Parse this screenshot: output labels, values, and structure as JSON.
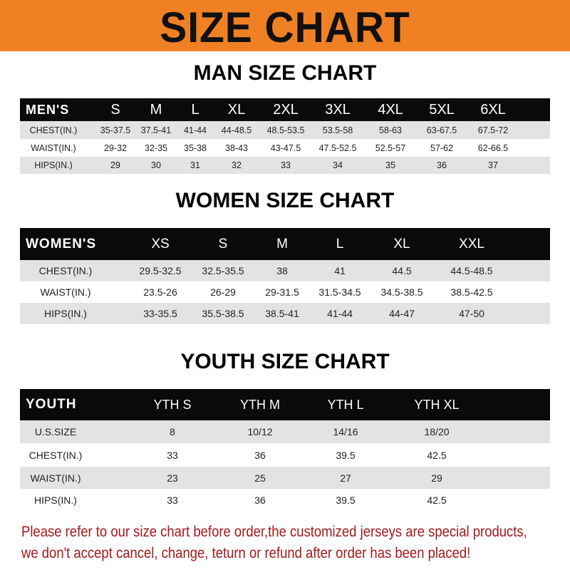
{
  "banner": {
    "title": "SIZE CHART",
    "color": "#f08024"
  },
  "men": {
    "title": "MAN SIZE CHART",
    "header": [
      "MEN'S",
      "S",
      "M",
      "L",
      "XL",
      "2XL",
      "3XL",
      "4XL",
      "5XL",
      "6XL"
    ],
    "rows": [
      [
        "CHEST(IN.)",
        "35-37.5",
        "37.5-41",
        "41-44",
        "44-48.5",
        "48.5-53.5",
        "53.5-58",
        "58-63",
        "63-67.5",
        "67.5-72"
      ],
      [
        "WAIST(IN.)",
        "29-32",
        "32-35",
        "35-38",
        "38-43",
        "43-47.5",
        "47.5-52.5",
        "52.5-57",
        "57-62",
        "62-66.5"
      ],
      [
        "HIPS(IN.)",
        "29",
        "30",
        "31",
        "32",
        "33",
        "34",
        "35",
        "36",
        "37"
      ]
    ]
  },
  "women": {
    "title": "WOMEN SIZE CHART",
    "header": [
      "WOMEN'S",
      "XS",
      "S",
      "M",
      "L",
      "XL",
      "XXL"
    ],
    "rows": [
      [
        "CHEST(IN.)",
        "29.5-32.5",
        "32.5-35.5",
        "38",
        "41",
        "44.5",
        "44.5-48.5"
      ],
      [
        "WAIST(IN.)",
        "23.5-26",
        "26-29",
        "29-31.5",
        "31.5-34.5",
        "34.5-38.5",
        "38.5-42.5"
      ],
      [
        "HIPS(IN.)",
        "33-35.5",
        "35.5-38.5",
        "38.5-41",
        "41-44",
        "44-47",
        "47-50"
      ]
    ]
  },
  "youth": {
    "title": "YOUTH SIZE CHART",
    "header": [
      "YOUTH",
      "YTH S",
      "YTH M",
      "YTH L",
      "YTH XL"
    ],
    "rows": [
      [
        "U.S.SIZE",
        "8",
        "10/12",
        "14/16",
        "18/20"
      ],
      [
        "CHEST(IN.)",
        "33",
        "36",
        "39.5",
        "42.5"
      ],
      [
        "WAIST(IN.)",
        "23",
        "25",
        "27",
        "29"
      ],
      [
        "HIPS(IN.)",
        "33",
        "36",
        "39.5",
        "42.5"
      ]
    ]
  },
  "note": {
    "line1": "Please refer to our size chart before order,the customized jerseys are special products,",
    "line2": "we don't accept cancel, change, teturn or refund after order has been placed!",
    "color": "#a3191b"
  }
}
